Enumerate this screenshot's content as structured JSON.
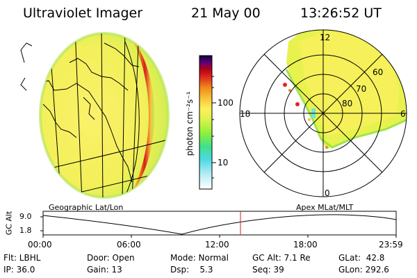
{
  "header": {
    "instrument": "Ultraviolet Imager",
    "date": "21 May 00",
    "time": "13:26:52 UT"
  },
  "colorbar": {
    "unit_label": "photon cm⁻²s⁻¹",
    "ticks": [
      "100",
      "10"
    ],
    "colors": [
      "#ffffff",
      "#bfeef5",
      "#4fd9e6",
      "#3fe08a",
      "#8ef23a",
      "#dcf24b",
      "#fbf15c",
      "#f6c43a",
      "#f08a1a",
      "#e0281e",
      "#b0001a",
      "#5b007a",
      "#0a0a3a"
    ]
  },
  "polar_plot": {
    "mlt_labels": {
      "top": "12",
      "left": "18",
      "right": "6",
      "bottom": "0"
    },
    "lat_labels": [
      "60",
      "70",
      "80"
    ]
  },
  "timeline": {
    "left_title": "Geographic Lat/Lon",
    "right_title": "Apex MLat/MLT",
    "y_label": "GC Alt",
    "y_ticks": [
      "9.0",
      "1.8"
    ],
    "x_ticks": [
      "00:00",
      "06:00",
      "12:00",
      "18:00",
      "23:59"
    ],
    "current_marker_fraction": 0.5591
  },
  "info": {
    "row1": {
      "filter": "Flt: LBHL",
      "door": "Door: Open",
      "mode": "Mode: Normal",
      "gc_alt": "GC Alt: 7.1 Re",
      "glat": "GLat:  42.8"
    },
    "row2": {
      "ip": "IP: 36.0",
      "gain": "Gain: 13",
      "dsp": "Dsp:    5.3",
      "seq": "Seq: 39",
      "glon": "GLon: 292.6"
    }
  }
}
